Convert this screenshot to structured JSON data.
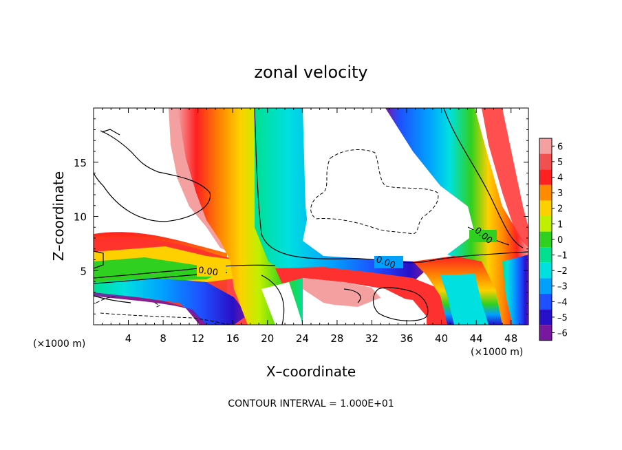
{
  "chart_data": {
    "type": "heatmap",
    "title": "zonal velocity",
    "xlabel": "X–coordinate",
    "ylabel": "Z–coordinate",
    "x_unit": "(×1000 m)",
    "x_unit_right": "(×1000 m)",
    "xlim": [
      0,
      50
    ],
    "ylim": [
      0,
      20
    ],
    "xticks": [
      4,
      8,
      12,
      16,
      20,
      24,
      28,
      32,
      36,
      40,
      44,
      48
    ],
    "yticks": [
      5,
      10,
      15
    ],
    "colorbar": {
      "min": -6,
      "max": 6,
      "ticks": [
        "6",
        "5",
        "4",
        "3",
        "2",
        "1",
        "0",
        "–1",
        "–2",
        "–3",
        "–4",
        "–5",
        "–6"
      ]
    },
    "contour_labels": [
      "0.00",
      "0.00",
      "0.00"
    ],
    "footer": "CONTOUR INTERVAL = 1.000E+01",
    "colors": {
      "plus6": "#f4a0a0",
      "plus5": "#f05050",
      "plus4": "#ff2020",
      "plus3": "#ff8c00",
      "plus2": "#ffd000",
      "plus1": "#c0f000",
      "zero": "#30d020",
      "minus1": "#00e090",
      "minus2": "#00e0e0",
      "minus3": "#00a0ff",
      "minus4": "#1e50ff",
      "minus5": "#2810c8",
      "minus6": "#7818a0"
    }
  }
}
